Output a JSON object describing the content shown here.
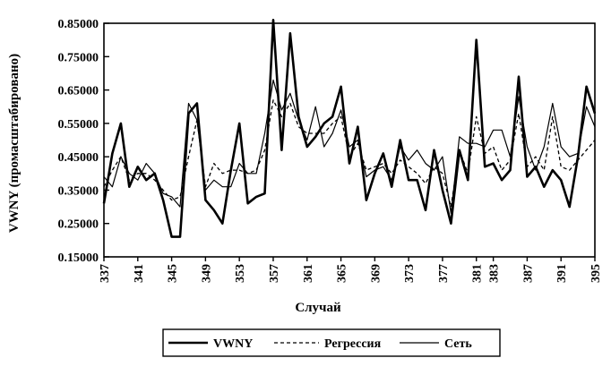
{
  "chart_data": {
    "type": "line",
    "xlabel": "Случай",
    "ylabel": "VWNY (промасштабировано)",
    "xlim": [
      337,
      395
    ],
    "ylim": [
      0.15,
      0.85
    ],
    "y_ticks": [
      "0.15000",
      "0.25000",
      "0.35000",
      "0.45000",
      "0.55000",
      "0.65000",
      "0.75000",
      "0.85000"
    ],
    "x_ticks": [
      "337",
      "341",
      "345",
      "349",
      "353",
      "357",
      "361",
      "365",
      "369",
      "373",
      "377",
      "381",
      "383",
      "387",
      "391",
      "395"
    ],
    "grid": false,
    "legend_position": "bottom",
    "x": [
      337,
      338,
      339,
      340,
      341,
      342,
      343,
      344,
      345,
      346,
      347,
      348,
      349,
      350,
      351,
      352,
      353,
      354,
      355,
      356,
      357,
      358,
      359,
      360,
      361,
      362,
      363,
      364,
      365,
      366,
      367,
      368,
      369,
      370,
      371,
      372,
      373,
      374,
      375,
      376,
      377,
      378,
      379,
      380,
      381,
      382,
      383,
      384,
      385,
      386,
      387,
      388,
      389,
      390,
      391,
      392,
      393,
      394,
      395
    ],
    "series": [
      {
        "name": "VWNY",
        "style": "solid-thick",
        "values": [
          0.31,
          0.46,
          0.55,
          0.36,
          0.42,
          0.38,
          0.4,
          0.32,
          0.21,
          0.21,
          0.58,
          0.61,
          0.32,
          0.29,
          0.25,
          0.41,
          0.55,
          0.31,
          0.33,
          0.34,
          0.86,
          0.47,
          0.82,
          0.57,
          0.48,
          0.51,
          0.55,
          0.57,
          0.66,
          0.43,
          0.54,
          0.32,
          0.4,
          0.46,
          0.36,
          0.5,
          0.38,
          0.38,
          0.29,
          0.47,
          0.35,
          0.25,
          0.47,
          0.38,
          0.8,
          0.42,
          0.43,
          0.38,
          0.41,
          0.69,
          0.39,
          0.42,
          0.36,
          0.41,
          0.38,
          0.3,
          0.45,
          0.66,
          0.58
        ]
      },
      {
        "name": "Регрессия",
        "style": "dashed",
        "values": [
          0.36,
          0.41,
          0.45,
          0.38,
          0.4,
          0.4,
          0.38,
          0.35,
          0.32,
          0.33,
          0.45,
          0.56,
          0.36,
          0.43,
          0.4,
          0.41,
          0.41,
          0.4,
          0.41,
          0.47,
          0.62,
          0.57,
          0.61,
          0.54,
          0.52,
          0.52,
          0.52,
          0.55,
          0.57,
          0.45,
          0.49,
          0.41,
          0.42,
          0.43,
          0.4,
          0.44,
          0.42,
          0.4,
          0.37,
          0.42,
          0.4,
          0.3,
          0.47,
          0.4,
          0.57,
          0.46,
          0.48,
          0.41,
          0.44,
          0.58,
          0.42,
          0.45,
          0.41,
          0.57,
          0.42,
          0.41,
          0.44,
          0.47,
          0.5
        ]
      },
      {
        "name": "Сеть",
        "style": "solid-thin",
        "values": [
          0.39,
          0.36,
          0.45,
          0.4,
          0.38,
          0.43,
          0.4,
          0.34,
          0.33,
          0.3,
          0.61,
          0.56,
          0.35,
          0.38,
          0.36,
          0.36,
          0.43,
          0.4,
          0.4,
          0.52,
          0.68,
          0.59,
          0.64,
          0.56,
          0.5,
          0.6,
          0.48,
          0.52,
          0.59,
          0.48,
          0.5,
          0.39,
          0.41,
          0.42,
          0.38,
          0.48,
          0.44,
          0.47,
          0.43,
          0.41,
          0.45,
          0.28,
          0.51,
          0.49,
          0.49,
          0.48,
          0.53,
          0.53,
          0.45,
          0.63,
          0.48,
          0.41,
          0.48,
          0.61,
          0.48,
          0.45,
          0.46,
          0.6,
          0.54
        ]
      }
    ]
  }
}
